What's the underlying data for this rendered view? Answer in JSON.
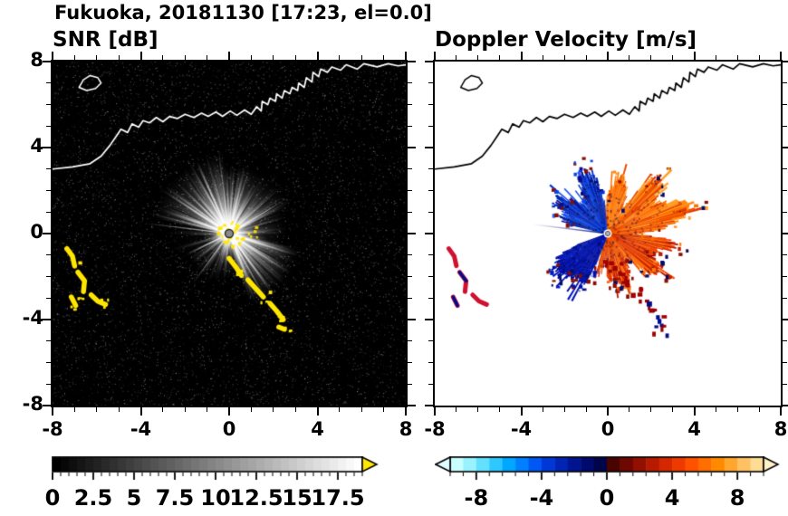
{
  "title": "Fukuoka, 20181130 [17:23, el=0.0]",
  "panels": {
    "snr": {
      "subtitle": "SNR [dB]",
      "x_tick_labels": [
        "-8",
        "-4",
        "0",
        "4",
        "8"
      ],
      "y_tick_labels": [
        "8",
        "4",
        "0",
        "-4",
        "-8"
      ],
      "colorbar_labels": [
        "0",
        "2.5",
        "5",
        "7.5",
        "10",
        "12.5",
        "15",
        "17.5"
      ]
    },
    "doppler": {
      "subtitle": "Doppler Velocity [m/s]",
      "x_tick_labels": [
        "-8",
        "-4",
        "0",
        "4",
        "8"
      ],
      "colorbar_labels": [
        "-8",
        "-4",
        "0",
        "4",
        "8"
      ]
    }
  },
  "chart_data": [
    {
      "name": "snr_ppi",
      "type": "heatmap",
      "title": "SNR [dB]",
      "xlim": [
        -8,
        8
      ],
      "ylim": [
        -8,
        8
      ],
      "x_ticks": [
        -8,
        -4,
        0,
        4,
        8
      ],
      "y_ticks": [
        -8,
        -4,
        0,
        4,
        8
      ],
      "minor_tick_step": 1,
      "background_color": "#000000",
      "seed": 1130,
      "radar_site_xy": [
        0,
        0
      ],
      "site_marker_color": "#8a8a8a",
      "clutter_color": "#ffe600",
      "needle_color": "#ffffff",
      "colorbar": {
        "range": [
          0,
          19
        ],
        "step": 0.5,
        "major_ticks": [
          0,
          2.5,
          5,
          7.5,
          10,
          12.5,
          15,
          17.5
        ],
        "cmap": "grayscale-black-to-white",
        "over_arrow_color": "#ffe600"
      },
      "echo_sectors": [
        {
          "a0": -12,
          "a1": 24,
          "density": 0.55,
          "len": 2.6
        },
        {
          "a0": 24,
          "a1": 95,
          "density": 0.8,
          "len": 3.1
        },
        {
          "a0": 95,
          "a1": 168,
          "density": 0.95,
          "len": 3.6
        },
        {
          "a0": 168,
          "a1": 197,
          "density": 0.12,
          "len": 2.8
        },
        {
          "a0": 197,
          "a1": 251,
          "density": 0.3,
          "len": 2.3
        },
        {
          "a0": 251,
          "a1": 287,
          "density": 0.5,
          "len": 2.1
        },
        {
          "a0": 287,
          "a1": 348,
          "density": 0.9,
          "len": 3.3
        }
      ],
      "needle_rays": [
        {
          "deg": 173,
          "len": 3.9
        },
        {
          "deg": 206,
          "len": 2.1
        },
        {
          "deg": 234,
          "len": 2.9
        },
        {
          "deg": 299,
          "len": 3.5
        }
      ]
    },
    {
      "name": "doppler_ppi",
      "type": "heatmap",
      "title": "Doppler Velocity [m/s]",
      "xlim": [
        -8,
        8
      ],
      "ylim": [
        -8,
        8
      ],
      "x_ticks": [
        -8,
        -4,
        0,
        4,
        8
      ],
      "y_ticks": [
        -8,
        -4,
        0,
        4,
        8
      ],
      "minor_tick_step": 1,
      "background_color": "#ffffff",
      "seed": 1723,
      "site_marker_color": "#b5b5b5",
      "needle_color": "#000d8a",
      "clutter_colors": [
        "#cf1030",
        "#000d8a",
        "#a00000"
      ],
      "speckle_colors": [
        "#8a0e00",
        "#000d66"
      ],
      "mottle_warm": [
        "#7a0a00",
        "#001060"
      ],
      "mottle_cool": [
        "#000430",
        "#2a5cf0"
      ],
      "colorbar": {
        "range": [
          -9.6,
          9.6
        ],
        "step": 0.8,
        "major_ticks": [
          -8,
          -4,
          0,
          4,
          8
        ],
        "under_arrow_color": "#dffcff",
        "over_arrow_color": "#fff1c8",
        "colors": [
          "#c8ffff",
          "#9af2ff",
          "#64e0ff",
          "#2ec8ff",
          "#00a6ff",
          "#0080ff",
          "#0058f2",
          "#0038d8",
          "#0024b4",
          "#001490",
          "#000a6c",
          "#000448",
          "#4a0400",
          "#6e0800",
          "#921000",
          "#b61a00",
          "#d42800",
          "#ee3a00",
          "#ff5200",
          "#ff6e00",
          "#ff8a00",
          "#ffa62e",
          "#ffc262",
          "#ffdc96"
        ]
      },
      "fan_sectors": [
        {
          "a0": 96,
          "a1": 167,
          "base": 2.5,
          "spread": 0.8,
          "kind": "cool",
          "palette": [
            "#0033cc",
            "#0a47e8",
            "#001f99",
            "#0b0b8a",
            "#2a5cf0"
          ]
        },
        {
          "a0": 200,
          "a1": 249,
          "base": 2.7,
          "spread": 0.3,
          "kind": "cool",
          "palette": [
            "#0010b0",
            "#0018c4",
            "#000d90"
          ]
        },
        {
          "a0": 251,
          "a1": 267,
          "base": 1.7,
          "spread": 0.6,
          "kind": "warm",
          "palette": [
            "#f05000",
            "#c02000",
            "#ff6a00"
          ]
        },
        {
          "a0": 268,
          "a1": 359,
          "base": 2.4,
          "spread": 0.9,
          "kind": "warm",
          "palette": [
            "#ff6a00",
            "#f04400",
            "#d42600",
            "#ff7d12",
            "#b81c00"
          ]
        },
        {
          "a0": 0,
          "a1": 58,
          "base": 3.1,
          "spread": 1.0,
          "kind": "warm",
          "palette": [
            "#ff7000",
            "#ff8c14",
            "#f05000",
            "#ffa026",
            "#e03800"
          ]
        },
        {
          "a0": 58,
          "a1": 95,
          "base": 2.1,
          "spread": 0.7,
          "kind": "warm",
          "palette": [
            "#ff8410",
            "#ff6a00",
            "#e84a00",
            "#ffa026"
          ]
        }
      ],
      "needle_rays": [
        {
          "deg": 173,
          "len": 3.5
        },
        {
          "deg": 201,
          "len": 1.9
        }
      ]
    }
  ],
  "shared": {
    "coastline": [
      [
        -8,
        3.0
      ],
      [
        -7.1,
        3.1
      ],
      [
        -6.3,
        3.25
      ],
      [
        -5.8,
        3.6
      ],
      [
        -5.4,
        4.1
      ],
      [
        -5.1,
        4.55
      ],
      [
        -4.9,
        4.85
      ],
      [
        -4.6,
        4.7
      ],
      [
        -4.4,
        5.1
      ],
      [
        -4.1,
        4.95
      ],
      [
        -3.9,
        5.25
      ],
      [
        -3.6,
        5.15
      ],
      [
        -3.3,
        5.4
      ],
      [
        -3.0,
        5.2
      ],
      [
        -2.7,
        5.45
      ],
      [
        -2.35,
        5.35
      ],
      [
        -2.0,
        5.55
      ],
      [
        -1.6,
        5.4
      ],
      [
        -1.25,
        5.6
      ],
      [
        -0.95,
        5.45
      ],
      [
        -0.6,
        5.65
      ],
      [
        -0.3,
        5.45
      ],
      [
        0.05,
        5.7
      ],
      [
        0.35,
        5.5
      ],
      [
        0.7,
        5.75
      ],
      [
        1.0,
        5.55
      ],
      [
        1.25,
        5.9
      ],
      [
        1.45,
        5.7
      ],
      [
        1.5,
        6.15
      ],
      [
        1.75,
        6.0
      ],
      [
        1.85,
        6.3
      ],
      [
        2.1,
        6.15
      ],
      [
        2.15,
        6.5
      ],
      [
        2.4,
        6.3
      ],
      [
        2.5,
        6.65
      ],
      [
        2.75,
        6.5
      ],
      [
        2.85,
        6.8
      ],
      [
        3.1,
        6.65
      ],
      [
        3.15,
        7.0
      ],
      [
        3.4,
        6.8
      ],
      [
        3.5,
        7.25
      ],
      [
        3.75,
        7.05
      ],
      [
        3.8,
        7.5
      ],
      [
        4.05,
        7.3
      ],
      [
        4.15,
        7.65
      ],
      [
        4.45,
        7.5
      ],
      [
        4.65,
        7.75
      ],
      [
        5.05,
        7.6
      ],
      [
        5.3,
        7.85
      ],
      [
        5.8,
        7.65
      ],
      [
        6.1,
        7.9
      ],
      [
        6.7,
        7.75
      ],
      [
        7.2,
        7.9
      ],
      [
        7.65,
        7.8
      ],
      [
        8,
        7.85
      ]
    ],
    "island": [
      [
        -6.8,
        6.8
      ],
      [
        -6.6,
        7.15
      ],
      [
        -6.3,
        7.35
      ],
      [
        -5.95,
        7.25
      ],
      [
        -5.8,
        7.0
      ],
      [
        -6.05,
        6.75
      ],
      [
        -6.45,
        6.65
      ]
    ],
    "clutter_sw_arcs": [
      [
        [
          -7.35,
          -0.7
        ],
        [
          -7.1,
          -1.05
        ],
        [
          -7.0,
          -1.5
        ]
      ],
      [
        [
          -6.85,
          -1.8
        ],
        [
          -6.55,
          -2.2
        ],
        [
          -6.6,
          -2.7
        ]
      ],
      [
        [
          -6.25,
          -2.85
        ],
        [
          -5.95,
          -3.15
        ],
        [
          -5.6,
          -3.3
        ]
      ],
      [
        [
          -7.15,
          -2.95
        ],
        [
          -6.95,
          -3.35
        ]
      ]
    ],
    "clutter_south_chain": [
      [
        [
          0.0,
          -1.15
        ],
        [
          0.3,
          -1.55
        ],
        [
          0.55,
          -1.95
        ]
      ],
      [
        [
          0.85,
          -2.15
        ],
        [
          1.2,
          -2.55
        ],
        [
          1.55,
          -2.95
        ]
      ],
      [
        [
          1.85,
          -3.25
        ],
        [
          2.15,
          -3.6
        ],
        [
          2.45,
          -4.0
        ]
      ],
      [
        [
          2.25,
          -4.35
        ],
        [
          2.5,
          -4.45
        ]
      ]
    ]
  }
}
